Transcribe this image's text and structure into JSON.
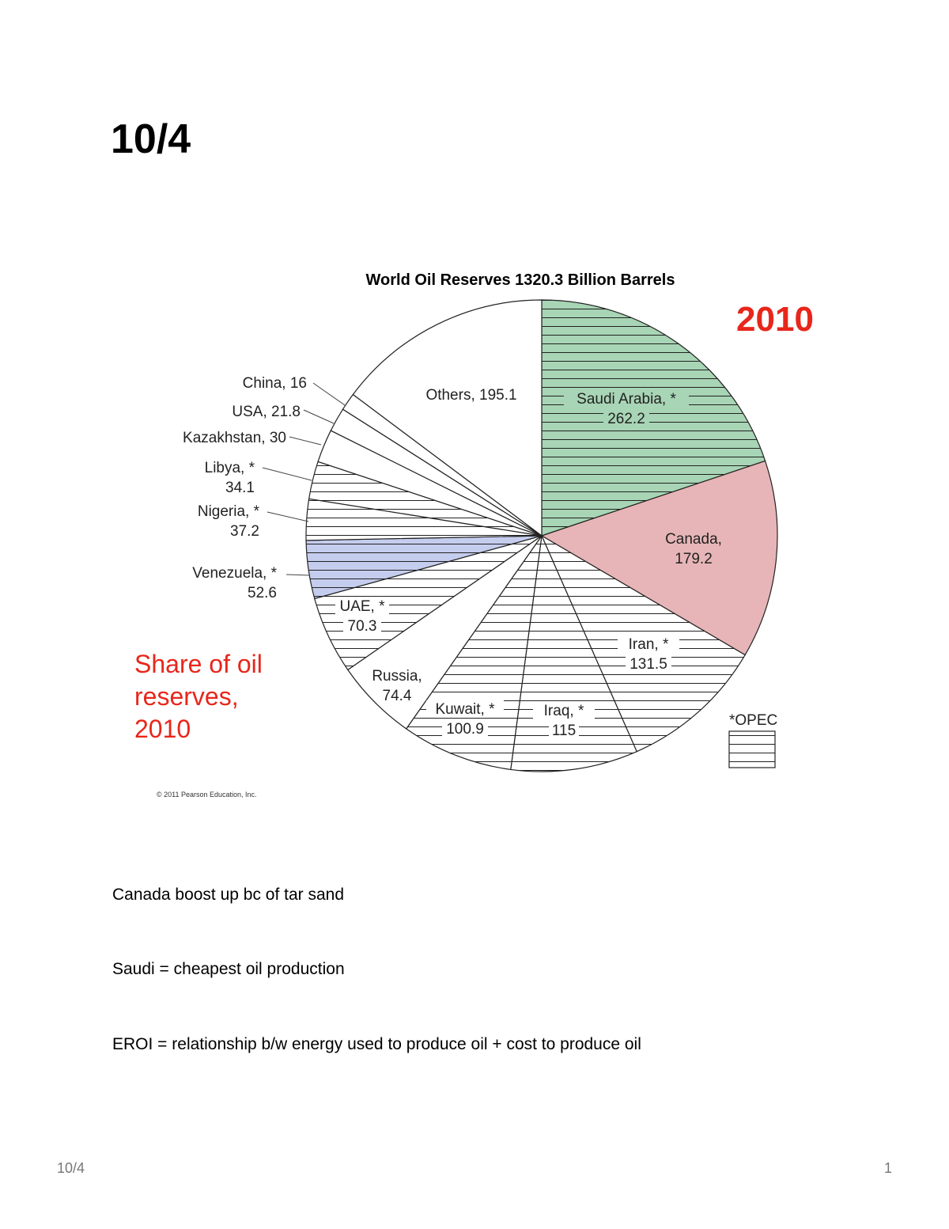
{
  "page": {
    "heading": "10/4",
    "footer_left": "10/4",
    "footer_right": "1"
  },
  "notes": [
    "Canada boost up bc of tar sand",
    "Saudi = cheapest oil production",
    "EROI = relationship b/w energy used to produce oil + cost to produce oil"
  ],
  "figure": {
    "year_callout": "2010",
    "share_lines": [
      "Share of oil",
      "reserves,",
      "2010"
    ],
    "opec_legend_label": "*OPEC",
    "copyright": "© 2011 Pearson Education, Inc."
  },
  "chart_data": {
    "type": "pie",
    "title": "World Oil Reserves 1320.3 Billion Barrels",
    "total": 1320.3,
    "unit": "Billion Barrels",
    "slices": [
      {
        "name": "Saudi Arabia",
        "value": 262.2,
        "opec": true,
        "color": "#a8d5b5",
        "label_lines": [
          "Saudi Arabia, *",
          "262.2"
        ]
      },
      {
        "name": "Canada",
        "value": 179.2,
        "opec": false,
        "color": "#e7b5b7",
        "label_lines": [
          "Canada,",
          "179.2"
        ]
      },
      {
        "name": "Iran",
        "value": 131.5,
        "opec": true,
        "color": "#ffffff",
        "label_lines": [
          "Iran, *",
          "131.5"
        ]
      },
      {
        "name": "Iraq",
        "value": 115,
        "opec": true,
        "color": "#ffffff",
        "label_lines": [
          "Iraq, *",
          "115"
        ]
      },
      {
        "name": "Kuwait",
        "value": 100.9,
        "opec": true,
        "color": "#ffffff",
        "label_lines": [
          "Kuwait, *",
          "100.9"
        ]
      },
      {
        "name": "Russia",
        "value": 74.4,
        "opec": false,
        "color": "#ffffff",
        "label_lines": [
          "Russia,",
          "74.4"
        ]
      },
      {
        "name": "UAE",
        "value": 70.3,
        "opec": true,
        "color": "#ffffff",
        "label_lines": [
          "UAE, *",
          "70.3"
        ]
      },
      {
        "name": "Venezuela",
        "value": 52.6,
        "opec": true,
        "color": "#c5cdee",
        "label_lines": [
          "Venezuela, *",
          "52.6"
        ]
      },
      {
        "name": "Nigeria",
        "value": 37.2,
        "opec": true,
        "color": "#ffffff",
        "label_lines": [
          "Nigeria, *",
          "37.2"
        ]
      },
      {
        "name": "Libya",
        "value": 34.1,
        "opec": true,
        "color": "#ffffff",
        "label_lines": [
          "Libya, *",
          "34.1"
        ]
      },
      {
        "name": "Kazakhstan",
        "value": 30,
        "opec": false,
        "color": "#ffffff",
        "label_lines": [
          "Kazakhstan, 30"
        ]
      },
      {
        "name": "USA",
        "value": 21.8,
        "opec": false,
        "color": "#ffffff",
        "label_lines": [
          "USA, 21.8"
        ]
      },
      {
        "name": "China",
        "value": 16,
        "opec": false,
        "color": "#ffffff",
        "label_lines": [
          "China, 16"
        ]
      },
      {
        "name": "Others",
        "value": 195.1,
        "opec": false,
        "color": "#ffffff",
        "label_lines": [
          "Others, 195.1"
        ]
      }
    ]
  }
}
